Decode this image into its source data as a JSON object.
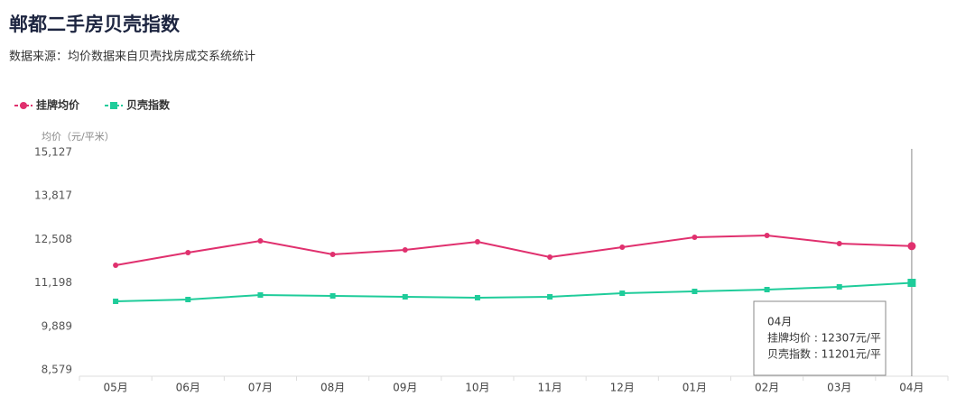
{
  "chart_data": {
    "type": "line",
    "title": "郸都二手房贝壳指数",
    "subtitle": "数据来源：均价数据来自贝壳找房成交系统统计",
    "y_label": "均价（元/平米）",
    "categories": [
      "05月",
      "06月",
      "07月",
      "08月",
      "09月",
      "10月",
      "11月",
      "12月",
      "01月",
      "02月",
      "03月",
      "04月"
    ],
    "series": [
      {
        "name": "挂牌均价",
        "color": "#e0306e",
        "marker": "circle",
        "values": [
          11731,
          12111,
          12464,
          12057,
          12193,
          12437,
          11975,
          12274,
          12573,
          12627,
          12383,
          12307
        ]
      },
      {
        "name": "贝壳指数",
        "color": "#1fcc9a",
        "marker": "square",
        "values": [
          10644,
          10698,
          10834,
          10807,
          10780,
          10753,
          10780,
          10888,
          10943,
          10997,
          11079,
          11201
        ]
      }
    ],
    "ylim": [
      8579,
      15127
    ],
    "yticks": [
      {
        "value": 8579,
        "label": "8,579"
      },
      {
        "value": 9889,
        "label": "9,889"
      },
      {
        "value": 11198,
        "label": "11,198"
      },
      {
        "value": 12508,
        "label": "12,508"
      },
      {
        "value": 13817,
        "label": "13,817"
      },
      {
        "value": 15127,
        "label": "15,127"
      }
    ],
    "legend": "top-left",
    "tooltip": {
      "title": "04月",
      "lines": [
        "挂牌均价 : 12307元/平",
        "贝壳指数 : 11201元/平"
      ]
    }
  }
}
